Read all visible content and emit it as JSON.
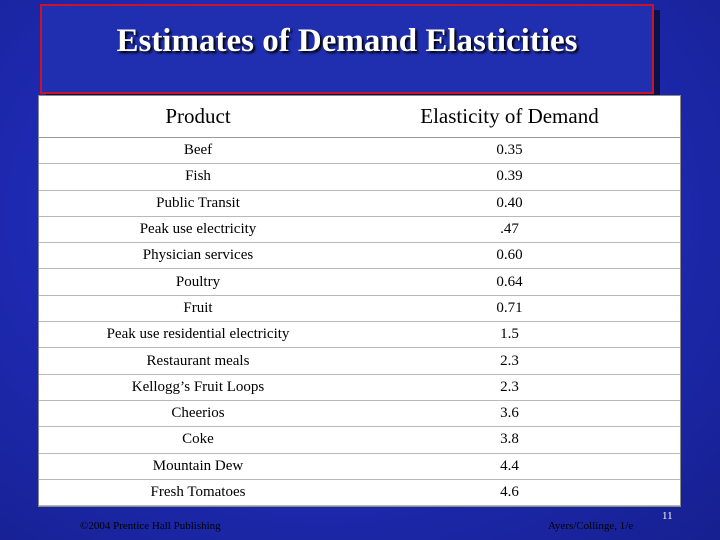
{
  "slide": {
    "title": "Estimates of Demand Elasticities"
  },
  "table": {
    "headers": [
      "Product",
      "Elasticity of Demand"
    ],
    "rows": [
      [
        "Beef",
        "0.35"
      ],
      [
        "Fish",
        "0.39"
      ],
      [
        "Public Transit",
        "0.40"
      ],
      [
        "Peak use electricity",
        ".47"
      ],
      [
        "Physician services",
        "0.60"
      ],
      [
        "Poultry",
        "0.64"
      ],
      [
        "Fruit",
        "0.71"
      ],
      [
        "Peak use residential electricity",
        "1.5"
      ],
      [
        "Restaurant meals",
        "2.3"
      ],
      [
        "Kellogg’s Fruit Loops",
        "2.3"
      ],
      [
        "Cheerios",
        "3.6"
      ],
      [
        "Coke",
        "3.8"
      ],
      [
        "Mountain Dew",
        "4.4"
      ],
      [
        "Fresh Tomatoes",
        "4.6"
      ]
    ]
  },
  "footer": {
    "copyright": "©2004 Prentice Hall Publishing",
    "author": "Ayers/Collinge, 1/e",
    "page_number": "11"
  },
  "colors": {
    "background": "#1f2bb8",
    "title_border": "#c8132a",
    "table_background": "#ffffff"
  }
}
